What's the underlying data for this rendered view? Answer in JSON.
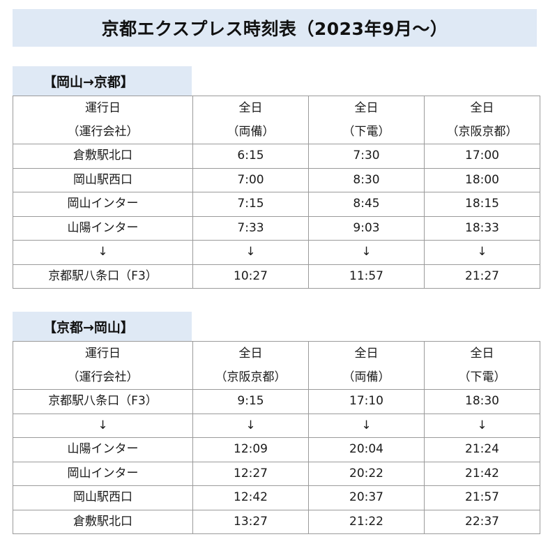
{
  "title": "京都エクスプレス時刻表（2023年9月～）",
  "colors": {
    "band_bg": "#dfe9f5",
    "highlight_text": "#e03030",
    "border": "#9a9a9a"
  },
  "sections": [
    {
      "label": "【岡山→京都】",
      "header": {
        "stop_col": [
          "運行日",
          "（運行会社）"
        ],
        "services": [
          {
            "day": "全日",
            "operator": "（両備）"
          },
          {
            "day": "全日",
            "operator": "（下電）"
          },
          {
            "day": "全日",
            "operator": "（京阪京都）"
          }
        ]
      },
      "rows": [
        {
          "stop": "倉敷駅北口",
          "times": [
            "6:15",
            "7:30",
            "17:00"
          ],
          "highlight": false
        },
        {
          "stop": "岡山駅西口",
          "times": [
            "7:00",
            "8:30",
            "18:00"
          ],
          "highlight": false
        },
        {
          "stop": "岡山インター",
          "times": [
            "7:15",
            "8:45",
            "18:15"
          ],
          "highlight": true
        },
        {
          "stop": "山陽インター",
          "times": [
            "7:33",
            "9:03",
            "18:33"
          ],
          "highlight": false
        },
        {
          "stop": "↓",
          "times": [
            "↓",
            "↓",
            "↓"
          ],
          "highlight": false
        },
        {
          "stop": "京都駅八条口（F3）",
          "times": [
            "10:27",
            "11:57",
            "21:27"
          ],
          "highlight": false
        }
      ]
    },
    {
      "label": "【京都→岡山】",
      "header": {
        "stop_col": [
          "運行日",
          "（運行会社）"
        ],
        "services": [
          {
            "day": "全日",
            "operator": "（京阪京都）"
          },
          {
            "day": "全日",
            "operator": "（両備）"
          },
          {
            "day": "全日",
            "operator": "（下電）"
          }
        ]
      },
      "rows": [
        {
          "stop": "京都駅八条口（F3）",
          "times": [
            "9:15",
            "17:10",
            "18:30"
          ],
          "highlight": false
        },
        {
          "stop": "↓",
          "times": [
            "↓",
            "↓",
            "↓"
          ],
          "highlight": false
        },
        {
          "stop": "山陽インター",
          "times": [
            "12:09",
            "20:04",
            "21:24"
          ],
          "highlight": false
        },
        {
          "stop": "岡山インター",
          "times": [
            "12:27",
            "20:22",
            "21:42"
          ],
          "highlight": true
        },
        {
          "stop": "岡山駅西口",
          "times": [
            "12:42",
            "20:37",
            "21:57"
          ],
          "highlight": false
        },
        {
          "stop": "倉敷駅北口",
          "times": [
            "13:27",
            "21:22",
            "22:37"
          ],
          "highlight": false
        }
      ]
    }
  ]
}
